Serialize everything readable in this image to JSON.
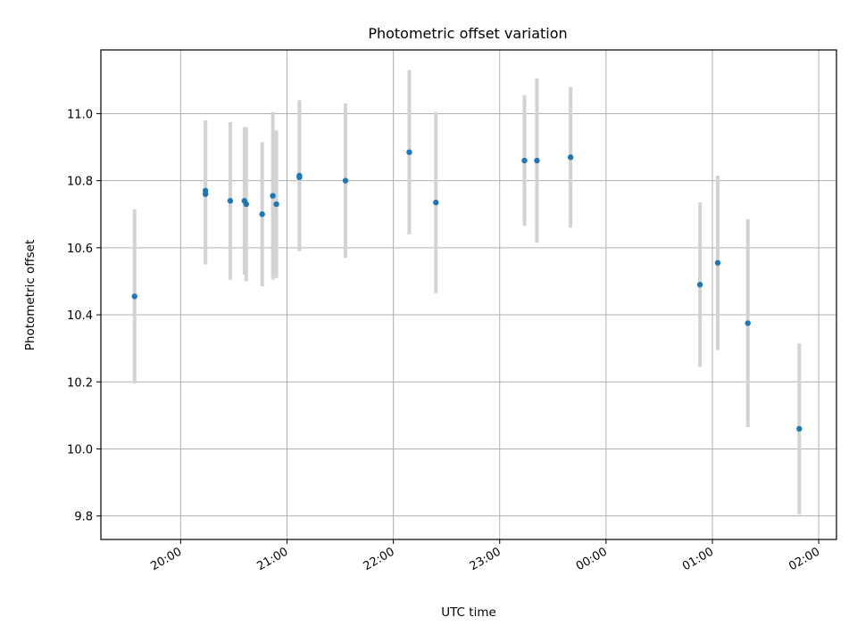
{
  "chart_data": {
    "type": "scatter",
    "title": "Photometric offset variation",
    "xlabel": "UTC time",
    "ylabel": "Photometric offset",
    "xlim": [
      "19:15",
      "02:10"
    ],
    "ylim": [
      9.73,
      11.19
    ],
    "x_ticks": [
      "20:00",
      "21:00",
      "22:00",
      "23:00",
      "00:00",
      "01:00",
      "02:00"
    ],
    "y_ticks": [
      "9.8",
      "10.0",
      "10.2",
      "10.4",
      "10.6",
      "10.8",
      "11.0"
    ],
    "grid": true,
    "points": [
      {
        "x": "19:34",
        "y": 10.455,
        "err": 0.26
      },
      {
        "x": "20:14",
        "y": 10.77,
        "err": 0.21
      },
      {
        "x": "20:14",
        "y": 10.76,
        "err": 0.21
      },
      {
        "x": "20:28",
        "y": 10.74,
        "err": 0.235
      },
      {
        "x": "20:36",
        "y": 10.74,
        "err": 0.22
      },
      {
        "x": "20:37",
        "y": 10.73,
        "err": 0.23
      },
      {
        "x": "20:46",
        "y": 10.7,
        "err": 0.215
      },
      {
        "x": "20:52",
        "y": 10.755,
        "err": 0.25
      },
      {
        "x": "20:54",
        "y": 10.73,
        "err": 0.22
      },
      {
        "x": "21:07",
        "y": 10.81,
        "err": 0.215
      },
      {
        "x": "21:07",
        "y": 10.815,
        "err": 0.225
      },
      {
        "x": "21:33",
        "y": 10.8,
        "err": 0.23
      },
      {
        "x": "22:09",
        "y": 10.885,
        "err": 0.245
      },
      {
        "x": "22:24",
        "y": 10.735,
        "err": 0.27
      },
      {
        "x": "23:14",
        "y": 10.86,
        "err": 0.195
      },
      {
        "x": "23:21",
        "y": 10.86,
        "err": 0.245
      },
      {
        "x": "23:40",
        "y": 10.87,
        "err": 0.21
      },
      {
        "x": "00:53",
        "y": 10.49,
        "err": 0.245
      },
      {
        "x": "01:03",
        "y": 10.555,
        "err": 0.26
      },
      {
        "x": "01:20",
        "y": 10.375,
        "err": 0.31
      },
      {
        "x": "01:49",
        "y": 10.06,
        "err": 0.255
      }
    ]
  }
}
